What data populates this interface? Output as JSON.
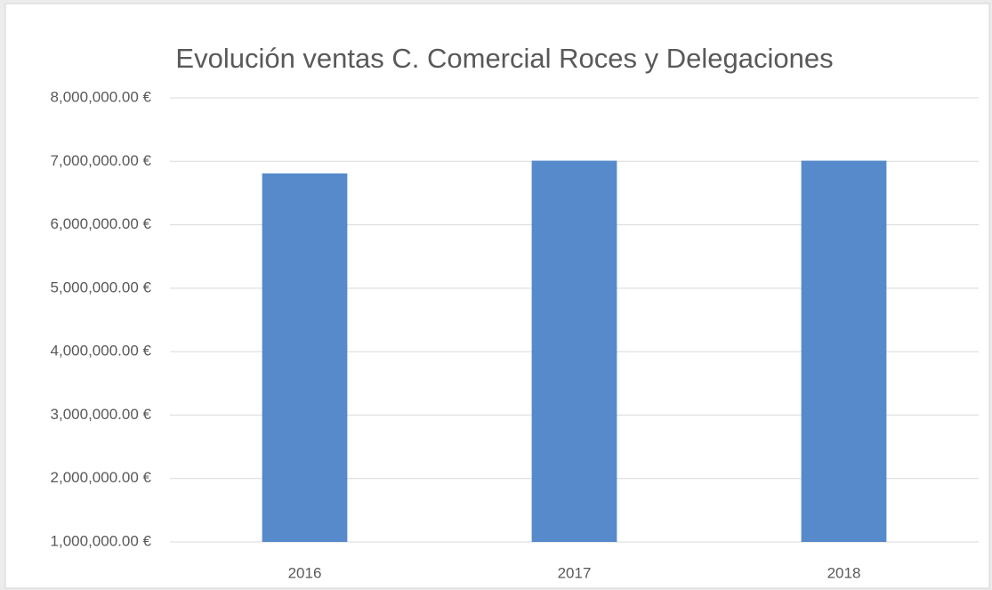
{
  "chart_data": {
    "type": "bar",
    "title": "Evolución ventas C. Comercial Roces y Delegaciones",
    "categories": [
      "2016",
      "2017",
      "2018"
    ],
    "values": [
      6810000,
      7010000,
      7010000
    ],
    "color": "#568acb",
    "ylim": [
      1000000,
      8000000
    ],
    "yticks": [
      {
        "value": 1000000,
        "label": "1,000,000.00 €"
      },
      {
        "value": 2000000,
        "label": "2,000,000.00 €"
      },
      {
        "value": 3000000,
        "label": "3,000,000.00 €"
      },
      {
        "value": 4000000,
        "label": "4,000,000.00 €"
      },
      {
        "value": 5000000,
        "label": "5,000,000.00 €"
      },
      {
        "value": 6000000,
        "label": "6,000,000.00 €"
      },
      {
        "value": 7000000,
        "label": "7,000,000.00 €"
      },
      {
        "value": 8000000,
        "label": "8,000,000.00 €"
      }
    ],
    "grid": true
  }
}
